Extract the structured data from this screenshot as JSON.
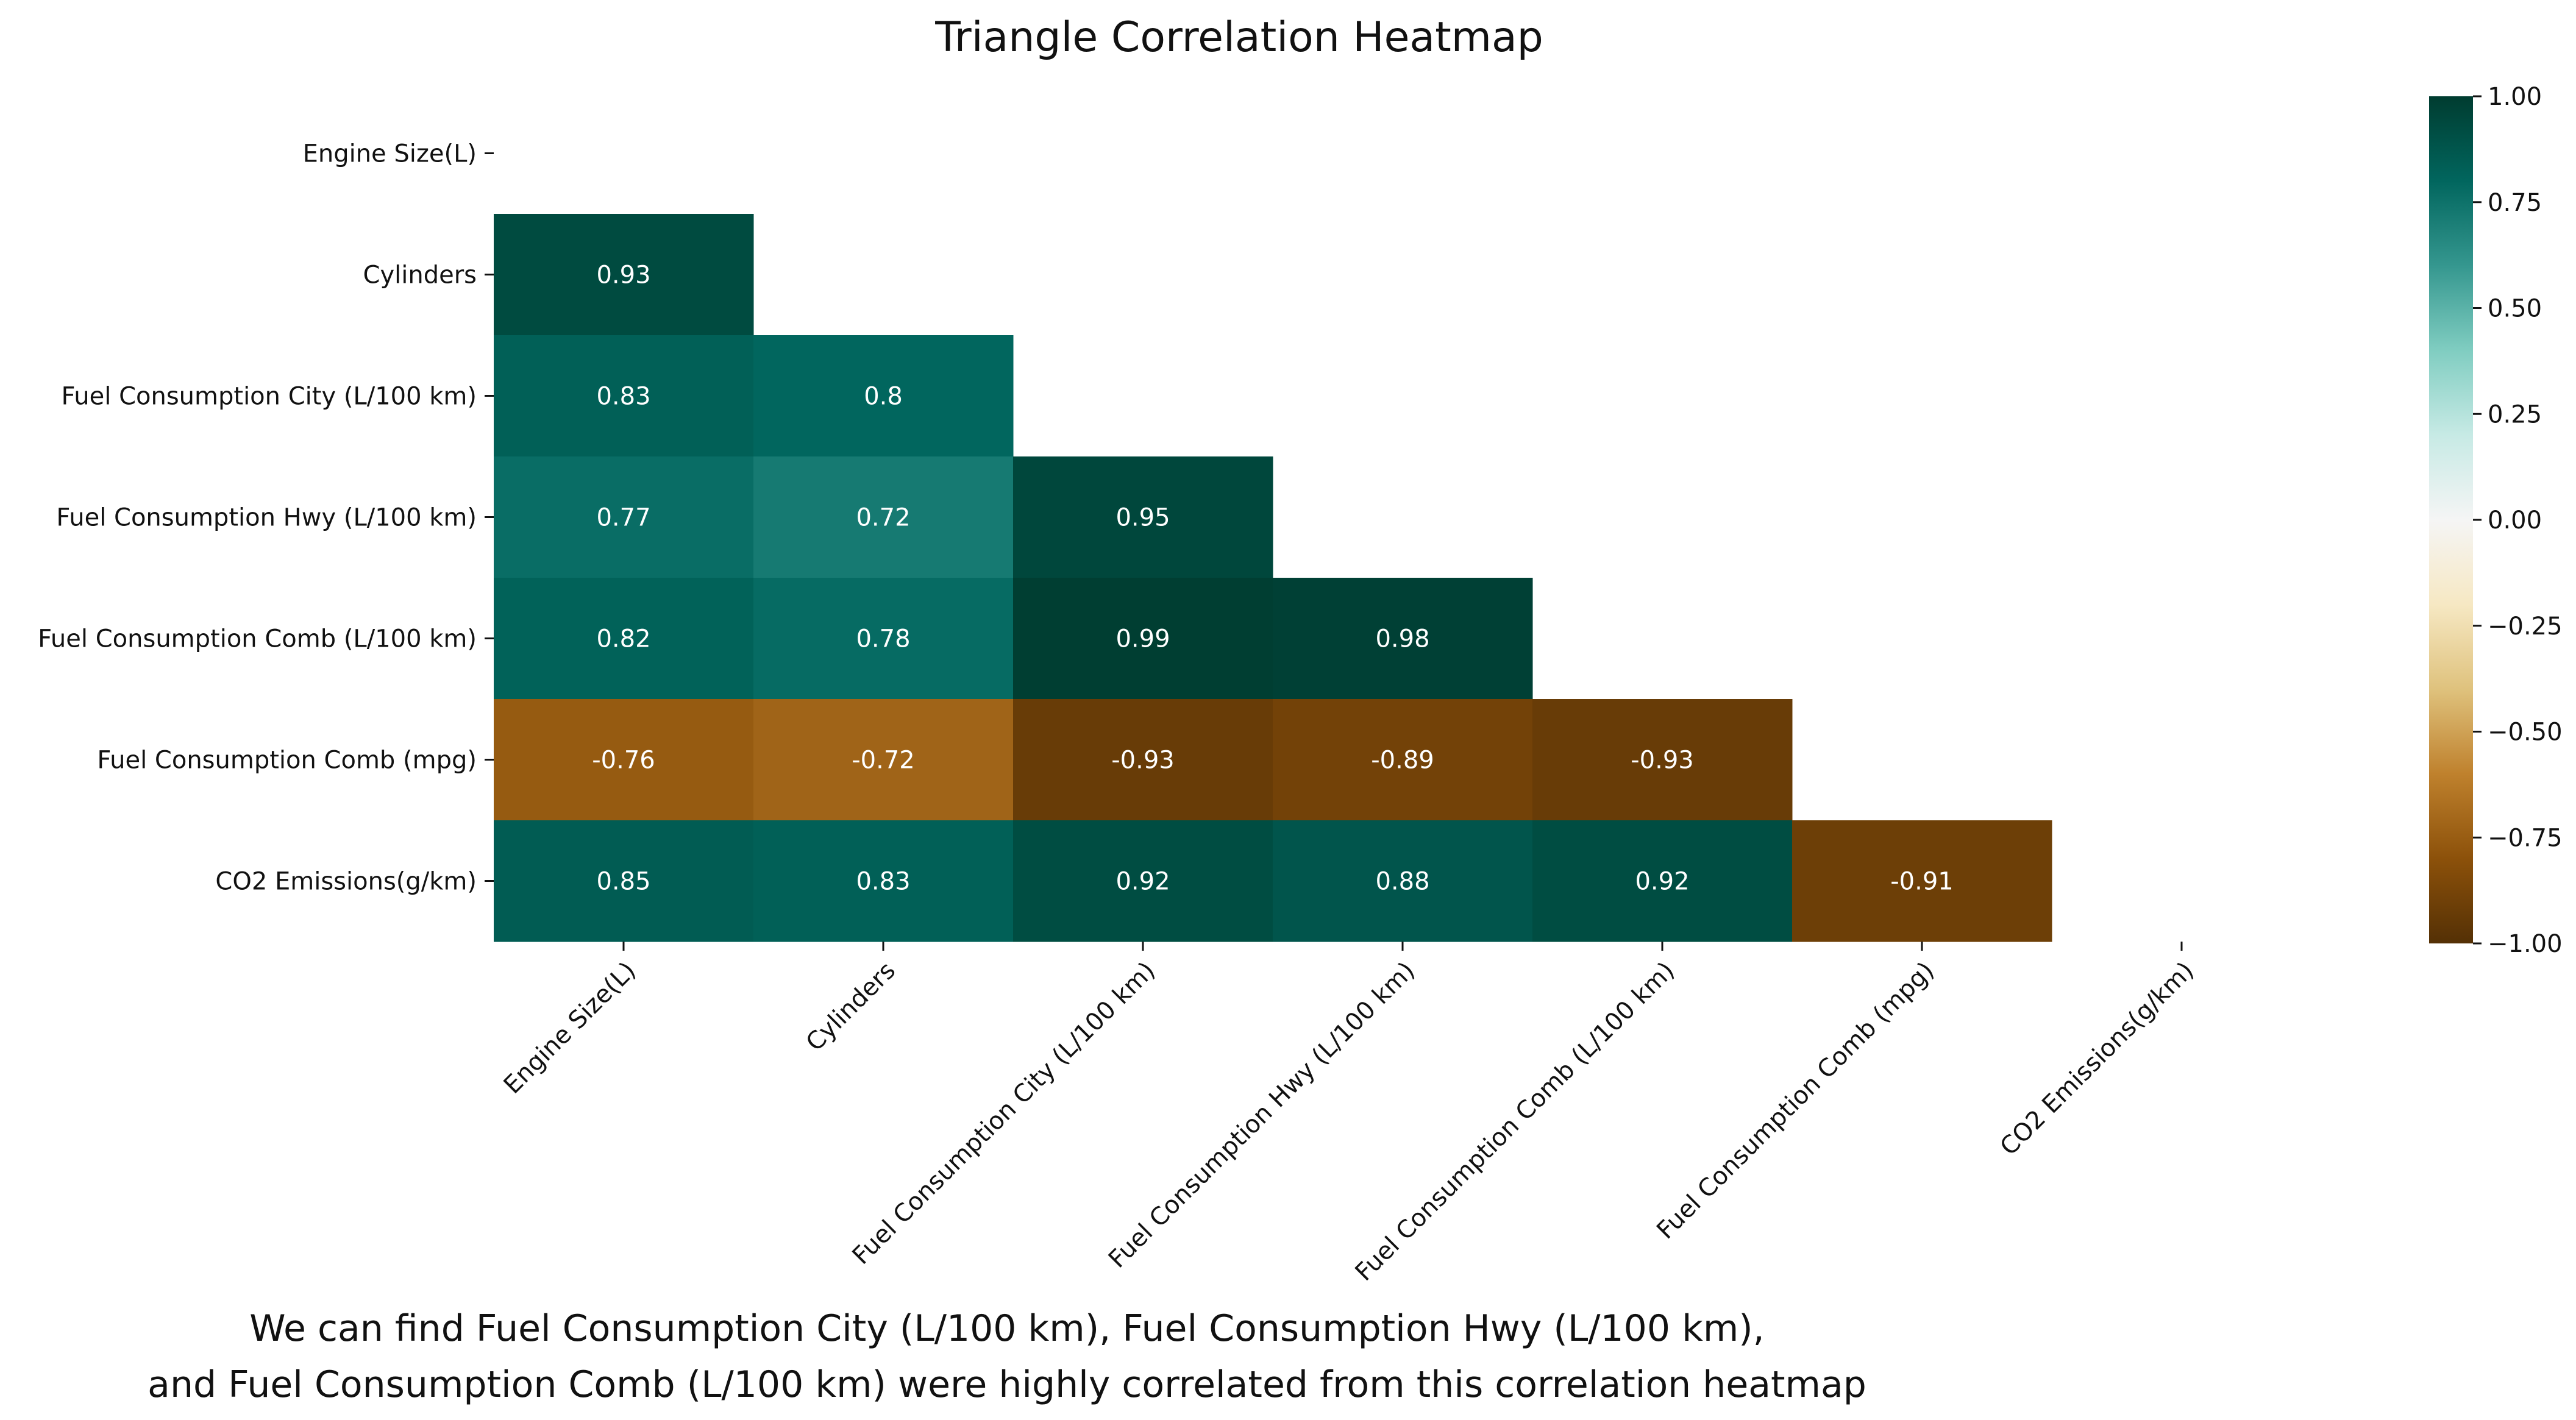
{
  "chart_data": {
    "type": "heatmap",
    "title": "Triangle Correlation Heatmap",
    "variables": [
      "Engine Size(L)",
      "Cylinders",
      "Fuel Consumption City (L/100 km)",
      "Fuel Consumption Hwy (L/100 km)",
      "Fuel Consumption Comb (L/100 km)",
      "Fuel Consumption Comb (mpg)",
      "CO2 Emissions(g/km)"
    ],
    "mask": "upper triangle including diagonal",
    "rows": [
      {
        "row": "Engine Size(L)",
        "values": []
      },
      {
        "row": "Cylinders",
        "values": [
          0.93
        ]
      },
      {
        "row": "Fuel Consumption City (L/100 km)",
        "values": [
          0.83,
          0.8
        ]
      },
      {
        "row": "Fuel Consumption Hwy (L/100 km)",
        "values": [
          0.77,
          0.72,
          0.95
        ]
      },
      {
        "row": "Fuel Consumption Comb (L/100 km)",
        "values": [
          0.82,
          0.78,
          0.99,
          0.98
        ]
      },
      {
        "row": "Fuel Consumption Comb (mpg)",
        "values": [
          -0.76,
          -0.72,
          -0.93,
          -0.89,
          -0.93
        ]
      },
      {
        "row": "CO2 Emissions(g/km)",
        "values": [
          0.85,
          0.83,
          0.92,
          0.88,
          0.92,
          -0.91
        ]
      }
    ],
    "annotation_labels": [
      [],
      [
        "0.93"
      ],
      [
        "0.83",
        "0.8"
      ],
      [
        "0.77",
        "0.72",
        "0.95"
      ],
      [
        "0.82",
        "0.78",
        "0.99",
        "0.98"
      ],
      [
        "-0.76",
        "-0.72",
        "-0.93",
        "-0.89",
        "-0.93"
      ],
      [
        "0.85",
        "0.83",
        "0.92",
        "0.88",
        "0.92",
        "-0.91"
      ]
    ],
    "colorbar": {
      "range": [
        -1.0,
        1.0
      ],
      "ticks": [
        1.0,
        0.75,
        0.5,
        0.25,
        0.0,
        -0.25,
        -0.5,
        -0.75,
        -1.0
      ],
      "tick_labels": [
        "1.00",
        "0.75",
        "0.50",
        "0.25",
        "0.00",
        "−0.25",
        "−0.50",
        "−0.75",
        "−1.00"
      ],
      "colormap": "BrBG",
      "colormap_stops": [
        "#543005",
        "#8c510a",
        "#bf812d",
        "#dfc27d",
        "#f6e8c3",
        "#f5f5f5",
        "#c7eae5",
        "#80cdc1",
        "#35978f",
        "#01665e",
        "#003c30"
      ]
    },
    "xtick_rotation_deg": 45,
    "grid": false
  },
  "caption": {
    "line1": "We can find Fuel Consumption City (L/100 km), Fuel Consumption Hwy (L/100 km),",
    "line2": "and Fuel Consumption Comb (L/100 km) were highly correlated from this correlation heatmap"
  }
}
